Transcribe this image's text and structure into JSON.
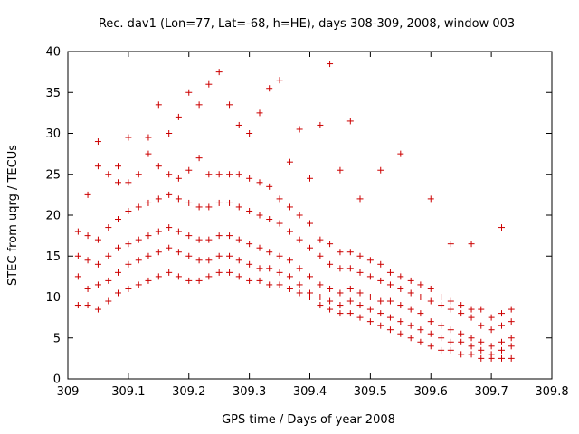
{
  "chart_data": {
    "type": "scatter",
    "title": "Rec. dav1 (Lon=77, Lat=-68, h=HE), days 308-309, 2008, window 003",
    "xlabel": "GPS time / Days of year 2008",
    "ylabel": "STEC from uqrg / TECUs",
    "xlim": [
      309,
      309.8
    ],
    "ylim": [
      0,
      40
    ],
    "xticks": [
      "309",
      "309.1",
      "309.2",
      "309.3",
      "309.4",
      "309.5",
      "309.6",
      "309.7",
      "309.8"
    ],
    "xtick_values": [
      309,
      309.1,
      309.2,
      309.3,
      309.4,
      309.5,
      309.6,
      309.7,
      309.8
    ],
    "yticks": [
      "0",
      "5",
      "10",
      "15",
      "20",
      "25",
      "30",
      "35",
      "40"
    ],
    "ytick_values": [
      0,
      5,
      10,
      15,
      20,
      25,
      30,
      35,
      40
    ],
    "grid": false,
    "legend": "none",
    "marker": "+",
    "color": "#cc0000",
    "series": [
      {
        "x": [
          309.017,
          309.033,
          309.05,
          309.067,
          309.083,
          309.1,
          309.117,
          309.133,
          309.15,
          309.167,
          309.183,
          309.2,
          309.217,
          309.233,
          309.25,
          309.267,
          309.283,
          309.3,
          309.317,
          309.333,
          309.35,
          309.367,
          309.383,
          309.4,
          309.417,
          309.433,
          309.45,
          309.467,
          309.483,
          309.5,
          309.517,
          309.533,
          309.55,
          309.567,
          309.583,
          309.6,
          309.617,
          309.633,
          309.65,
          309.667,
          309.683,
          309.7,
          309.717,
          309.733
        ],
        "y": [
          9.0,
          9.0,
          8.5,
          9.5,
          10.5,
          11.0,
          11.5,
          12.0,
          12.5,
          13.0,
          12.5,
          12.0,
          12.0,
          12.5,
          13.0,
          13.0,
          12.5,
          12.0,
          12.0,
          11.5,
          11.5,
          11.0,
          10.5,
          10.0,
          9.0,
          8.5,
          8.0,
          8.0,
          7.5,
          7.0,
          6.5,
          6.0,
          5.5,
          5.0,
          4.5,
          4.0,
          3.5,
          3.5,
          3.0,
          3.0,
          2.5,
          2.5,
          2.5,
          2.5
        ]
      },
      {
        "x": [
          309.017,
          309.033,
          309.05,
          309.067,
          309.083,
          309.1,
          309.117,
          309.133,
          309.15,
          309.167,
          309.183,
          309.2,
          309.217,
          309.233,
          309.25,
          309.267,
          309.283,
          309.3,
          309.317,
          309.333,
          309.35,
          309.367,
          309.383,
          309.4,
          309.417,
          309.433,
          309.45,
          309.467,
          309.483,
          309.5,
          309.517,
          309.533,
          309.55,
          309.567,
          309.583,
          309.6,
          309.617,
          309.633,
          309.65,
          309.667,
          309.683,
          309.7,
          309.717,
          309.733
        ],
        "y": [
          12.5,
          11.0,
          11.5,
          12.0,
          13.0,
          14.0,
          14.5,
          15.0,
          15.5,
          16.0,
          15.5,
          15.0,
          14.5,
          14.5,
          15.0,
          15.0,
          14.5,
          14.0,
          13.5,
          13.5,
          13.0,
          12.5,
          11.5,
          10.5,
          10.0,
          9.5,
          9.0,
          9.5,
          9.0,
          8.5,
          8.0,
          7.5,
          7.0,
          6.5,
          6.0,
          5.5,
          5.0,
          4.5,
          4.5,
          4.0,
          3.5,
          3.0,
          3.5,
          4.0
        ]
      },
      {
        "x": [
          309.017,
          309.033,
          309.05,
          309.067,
          309.083,
          309.1,
          309.117,
          309.133,
          309.15,
          309.167,
          309.183,
          309.2,
          309.217,
          309.233,
          309.25,
          309.267,
          309.283,
          309.3,
          309.317,
          309.333,
          309.35,
          309.367,
          309.383,
          309.4,
          309.417,
          309.433,
          309.45,
          309.467,
          309.483,
          309.5,
          309.517,
          309.533,
          309.55,
          309.567,
          309.583,
          309.6,
          309.617,
          309.633,
          309.65,
          309.667,
          309.683,
          309.7,
          309.717,
          309.733
        ],
        "y": [
          15.0,
          14.5,
          14.0,
          15.0,
          16.0,
          16.5,
          17.0,
          17.5,
          18.0,
          18.5,
          18.0,
          17.5,
          17.0,
          17.0,
          17.5,
          17.5,
          17.0,
          16.5,
          16.0,
          15.5,
          15.0,
          14.5,
          13.5,
          12.5,
          11.5,
          11.0,
          10.5,
          11.0,
          10.5,
          10.0,
          9.5,
          9.5,
          9.0,
          8.5,
          8.0,
          7.0,
          6.5,
          6.0,
          5.5,
          5.0,
          4.5,
          4.0,
          4.5,
          5.0
        ]
      },
      {
        "x": [
          309.017,
          309.033,
          309.05,
          309.067,
          309.083,
          309.1,
          309.117,
          309.133,
          309.15,
          309.167,
          309.183,
          309.2,
          309.217,
          309.233,
          309.25,
          309.267,
          309.283,
          309.3,
          309.317,
          309.333,
          309.35,
          309.367,
          309.383,
          309.4,
          309.417,
          309.433,
          309.45,
          309.467,
          309.483,
          309.5,
          309.517,
          309.533,
          309.55,
          309.567,
          309.583,
          309.6,
          309.617,
          309.633,
          309.65,
          309.667,
          309.683,
          309.7,
          309.717,
          309.733
        ],
        "y": [
          18.0,
          17.5,
          17.0,
          18.5,
          19.5,
          20.5,
          21.0,
          21.5,
          22.0,
          22.5,
          22.0,
          21.5,
          21.0,
          21.0,
          21.5,
          21.5,
          21.0,
          20.5,
          20.0,
          19.5,
          19.0,
          18.0,
          17.0,
          16.0,
          15.0,
          14.0,
          13.5,
          13.5,
          13.0,
          12.5,
          12.0,
          11.5,
          11.0,
          10.5,
          10.0,
          9.5,
          9.0,
          8.5,
          8.0,
          7.5,
          6.5,
          6.0,
          6.5,
          7.0
        ]
      },
      {
        "x": [
          309.033,
          309.05,
          309.067,
          309.083,
          309.1,
          309.117,
          309.133,
          309.15,
          309.167,
          309.183,
          309.2,
          309.217,
          309.233,
          309.25,
          309.267,
          309.283,
          309.3,
          309.317,
          309.333,
          309.35,
          309.367,
          309.383,
          309.4,
          309.417,
          309.433,
          309.45,
          309.467,
          309.483,
          309.5,
          309.517,
          309.533,
          309.55,
          309.567,
          309.583,
          309.6,
          309.617,
          309.633,
          309.65,
          309.667,
          309.683,
          309.7,
          309.717,
          309.733
        ],
        "y": [
          22.5,
          26.0,
          25.0,
          24.0,
          24.0,
          25.0,
          27.5,
          26.0,
          25.0,
          24.5,
          25.5,
          27.0,
          25.0,
          25.0,
          25.0,
          25.0,
          24.5,
          24.0,
          23.5,
          22.0,
          21.0,
          20.0,
          19.0,
          17.0,
          16.5,
          15.5,
          15.5,
          15.0,
          14.5,
          14.0,
          13.0,
          12.5,
          12.0,
          11.5,
          11.0,
          10.0,
          9.5,
          9.0,
          8.5,
          8.5,
          7.5,
          8.0,
          8.5
        ]
      },
      {
        "x": [
          309.05,
          309.083,
          309.1,
          309.133,
          309.15,
          309.167,
          309.183,
          309.2,
          309.217,
          309.233,
          309.25,
          309.267,
          309.283,
          309.3,
          309.317,
          309.333,
          309.35,
          309.367,
          309.383,
          309.4,
          309.417,
          309.433,
          309.45,
          309.467,
          309.483,
          309.517,
          309.55,
          309.6,
          309.633,
          309.667,
          309.717
        ],
        "y": [
          29.0,
          26.0,
          29.5,
          29.5,
          33.5,
          30.0,
          32.0,
          35.0,
          33.5,
          36.0,
          37.5,
          33.5,
          31.0,
          30.0,
          32.5,
          35.5,
          36.5,
          26.5,
          30.5,
          24.5,
          31.0,
          38.5,
          25.5,
          31.5,
          22.0,
          25.5,
          27.5,
          22.0,
          16.5,
          16.5,
          18.5
        ]
      }
    ]
  }
}
